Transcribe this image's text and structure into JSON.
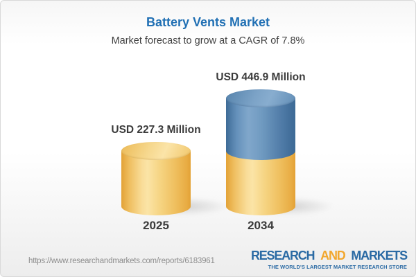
{
  "chart_data": {
    "type": "bar",
    "style": "3d-cylinder-infographic",
    "title": "Battery Vents Market",
    "subtitle": "Market forecast to grow at a CAGR of 7.8%",
    "unit": "USD Million",
    "cagr_percent": 7.8,
    "categories": [
      "2025",
      "2034"
    ],
    "values": [
      227.3,
      446.9
    ],
    "axes": "none",
    "legend": "none",
    "bars": [
      {
        "year": "2025",
        "label": "USD 227.3 Million",
        "value": 227.3,
        "segments": [
          {
            "color": "yellow",
            "value": 227.3
          }
        ]
      },
      {
        "year": "2034",
        "label": "USD 446.9 Million",
        "value": 446.9,
        "segments": [
          {
            "color": "yellow",
            "value": 227.3
          },
          {
            "color": "blue",
            "value": 219.6
          }
        ]
      }
    ]
  },
  "footer": {
    "url": "https://www.researchandmarkets.com/reports/6183961",
    "logo": {
      "word1": "RESEARCH",
      "word2": "AND",
      "word3": "MARKETS",
      "tagline": "THE WORLD'S LARGEST MARKET RESEARCH STORE"
    }
  },
  "colors": {
    "title_blue": "#2170b4",
    "text_dark": "#3b3b3b",
    "bar_yellow": "#f3cd78",
    "bar_blue": "#5c88b2",
    "logo_blue": "#2a6aa4",
    "logo_orange": "#f2a72e",
    "url_gray": "#8d8d8d"
  }
}
